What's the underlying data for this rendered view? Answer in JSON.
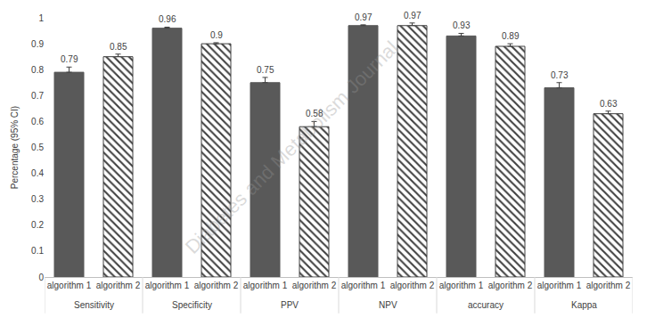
{
  "chart_data": {
    "type": "bar",
    "y_label": "Percentage (95% CI)",
    "categories": [
      "Sensitivity",
      "Specificity",
      "PPV",
      "NPV",
      "accuracy",
      "Kappa"
    ],
    "series": [
      {
        "name": "algorithm 1",
        "color": "#595959",
        "marker": "solid",
        "values": [
          0.79,
          0.96,
          0.75,
          0.97,
          0.93,
          0.73
        ],
        "errors": [
          0.02,
          0.004,
          0.02,
          0.003,
          0.01,
          0.02
        ]
      },
      {
        "name": "algorithm 2",
        "color": "#404040",
        "marker": "hatch",
        "values": [
          0.85,
          0.9,
          0.58,
          0.97,
          0.89,
          0.63
        ],
        "errors": [
          0.01,
          0.004,
          0.02,
          0.01,
          0.01,
          0.01
        ]
      }
    ],
    "ylim": [
      0,
      1
    ],
    "yticks": [
      0,
      0.1,
      0.2,
      0.3,
      0.4,
      0.5,
      0.6,
      0.7,
      0.8,
      0.9,
      1
    ],
    "grid": false,
    "data_labels": true,
    "annotations": [
      {
        "text": "Diabetes and Metabolism Journal"
      }
    ]
  }
}
